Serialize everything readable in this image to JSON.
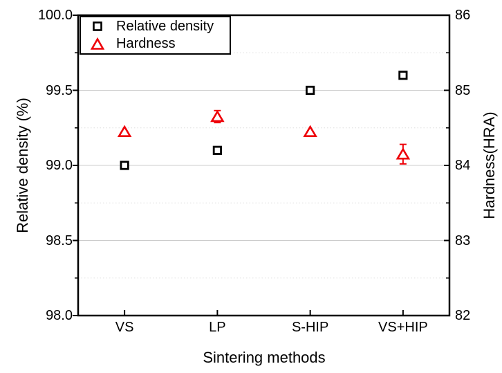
{
  "chart_data": {
    "type": "scatter",
    "title": "",
    "xlabel": "Sintering methods",
    "categories": [
      "VS",
      "LP",
      "S-HIP",
      "VS+HIP"
    ],
    "left_axis": {
      "label": "Relative density (%)",
      "min": 98.0,
      "max": 100.0,
      "major_step": 0.5,
      "minor_step": 0.25,
      "tick_labels": [
        "98.0",
        "98.5",
        "99.0",
        "99.5",
        "100.0"
      ]
    },
    "right_axis": {
      "label": "Hardness(HRA)",
      "min": 82,
      "max": 86,
      "major_step": 1,
      "minor_step": 0.5,
      "tick_labels": [
        "82",
        "83",
        "84",
        "85",
        "86"
      ]
    },
    "series": [
      {
        "name": "Relative density",
        "axis": "left",
        "marker": "square",
        "color": "#000000",
        "values": [
          99.0,
          99.1,
          99.5,
          99.6
        ],
        "errors": [
          0,
          0,
          0,
          0
        ]
      },
      {
        "name": "Hardness",
        "axis": "right",
        "marker": "triangle",
        "color": "#ee0008",
        "values": [
          84.45,
          84.65,
          84.45,
          84.15
        ],
        "errors": [
          0,
          0.08,
          0,
          0.13
        ]
      }
    ],
    "grid": {
      "major_style": "solid",
      "major_color": "#cccccc",
      "minor_style": "dotted",
      "minor_color": "#dedede",
      "vertical": false
    },
    "legend": {
      "position": "top-left",
      "entries": [
        "Relative density",
        "Hardness"
      ]
    },
    "frame_color": "#000000"
  }
}
